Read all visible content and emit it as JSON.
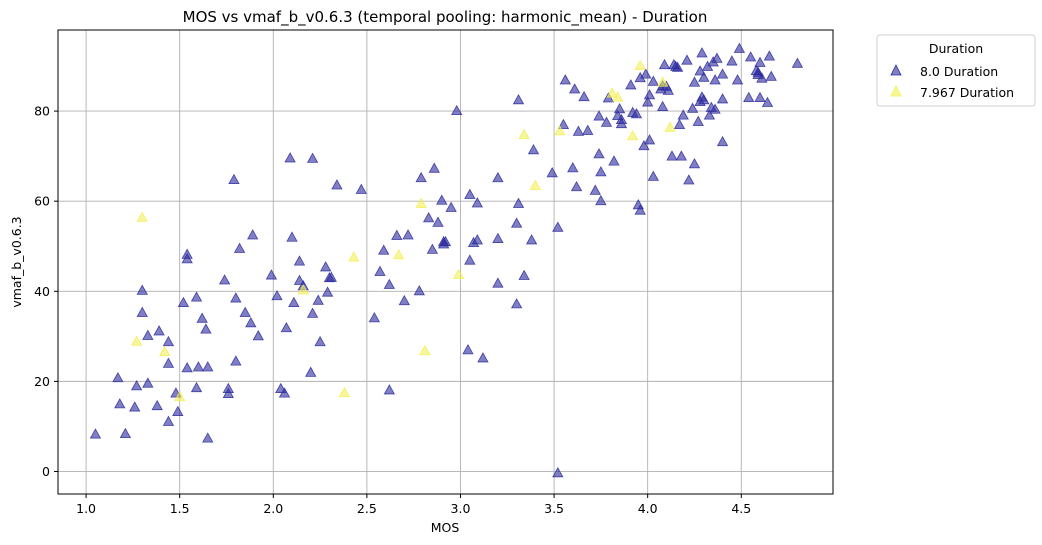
{
  "chart_data": {
    "type": "scatter",
    "title": "MOS vs vmaf_b_v0.6.3 (temporal pooling: harmonic_mean) - Duration",
    "xlabel": "MOS",
    "ylabel": "vmaf_b_v0.6.3",
    "xlim": [
      0.85,
      4.99
    ],
    "ylim": [
      -5,
      98
    ],
    "xticks": [
      "1.0",
      "1.5",
      "2.0",
      "2.5",
      "3.0",
      "3.5",
      "4.0",
      "4.5"
    ],
    "xtick_values": [
      1.0,
      1.5,
      2.0,
      2.5,
      3.0,
      3.5,
      4.0,
      4.5
    ],
    "yticks": [
      "0",
      "20",
      "40",
      "60",
      "80"
    ],
    "ytick_values": [
      0,
      20,
      40,
      60,
      80
    ],
    "grid": true,
    "marker": "triangle",
    "legend": {
      "title": "Duration",
      "position": "outside-top-right"
    },
    "series": [
      {
        "name": "8.0 Duration",
        "color": "#2b2a9c",
        "points": [
          [
            1.05,
            8.3
          ],
          [
            1.17,
            20.8
          ],
          [
            1.18,
            15.0
          ],
          [
            1.21,
            8.4
          ],
          [
            1.26,
            14.3
          ],
          [
            1.27,
            19.0
          ],
          [
            1.3,
            40.2
          ],
          [
            1.3,
            35.3
          ],
          [
            1.33,
            30.2
          ],
          [
            1.33,
            19.6
          ],
          [
            1.38,
            14.6
          ],
          [
            1.39,
            31.2
          ],
          [
            1.44,
            28.8
          ],
          [
            1.44,
            24.0
          ],
          [
            1.44,
            11.1
          ],
          [
            1.48,
            17.4
          ],
          [
            1.49,
            13.3
          ],
          [
            1.52,
            37.5
          ],
          [
            1.54,
            48.2
          ],
          [
            1.54,
            47.2
          ],
          [
            1.54,
            23.0
          ],
          [
            1.59,
            38.7
          ],
          [
            1.59,
            18.6
          ],
          [
            1.6,
            23.2
          ],
          [
            1.62,
            34.0
          ],
          [
            1.64,
            31.6
          ],
          [
            1.65,
            23.2
          ],
          [
            1.65,
            7.4
          ],
          [
            1.74,
            42.5
          ],
          [
            1.76,
            18.4
          ],
          [
            1.76,
            17.3
          ],
          [
            1.79,
            64.8
          ],
          [
            1.8,
            24.5
          ],
          [
            1.8,
            38.5
          ],
          [
            1.82,
            49.5
          ],
          [
            1.85,
            35.3
          ],
          [
            1.88,
            33.0
          ],
          [
            1.89,
            52.5
          ],
          [
            1.92,
            30.1
          ],
          [
            1.99,
            43.6
          ],
          [
            2.02,
            39.0
          ],
          [
            2.04,
            18.4
          ],
          [
            2.06,
            17.4
          ],
          [
            2.07,
            31.9
          ],
          [
            2.09,
            69.6
          ],
          [
            2.1,
            52.0
          ],
          [
            2.11,
            37.5
          ],
          [
            2.14,
            46.7
          ],
          [
            2.14,
            42.4
          ],
          [
            2.16,
            41.2
          ],
          [
            2.2,
            22.0
          ],
          [
            2.21,
            69.5
          ],
          [
            2.21,
            35.1
          ],
          [
            2.24,
            38.0
          ],
          [
            2.25,
            28.8
          ],
          [
            2.28,
            45.4
          ],
          [
            2.29,
            39.8
          ],
          [
            2.3,
            43.0
          ],
          [
            2.31,
            43.1
          ],
          [
            2.34,
            63.6
          ],
          [
            2.47,
            62.6
          ],
          [
            2.54,
            34.1
          ],
          [
            2.57,
            44.4
          ],
          [
            2.59,
            49.1
          ],
          [
            2.62,
            41.5
          ],
          [
            2.62,
            18.1
          ],
          [
            2.66,
            52.4
          ],
          [
            2.7,
            37.9
          ],
          [
            2.72,
            52.5
          ],
          [
            2.78,
            40.1
          ],
          [
            2.79,
            65.2
          ],
          [
            2.83,
            56.3
          ],
          [
            2.85,
            49.3
          ],
          [
            2.86,
            67.3
          ],
          [
            2.88,
            55.3
          ],
          [
            2.9,
            60.2
          ],
          [
            2.91,
            51.0
          ],
          [
            2.91,
            50.5
          ],
          [
            2.92,
            51.0
          ],
          [
            2.95,
            58.6
          ],
          [
            2.98,
            80.1
          ],
          [
            3.05,
            61.5
          ],
          [
            3.04,
            27.0
          ],
          [
            3.05,
            46.9
          ],
          [
            3.07,
            50.8
          ],
          [
            3.09,
            59.6
          ],
          [
            3.09,
            51.4
          ],
          [
            3.12,
            25.2
          ],
          [
            3.2,
            65.2
          ],
          [
            3.2,
            51.7
          ],
          [
            3.2,
            41.8
          ],
          [
            3.3,
            55.1
          ],
          [
            3.3,
            37.2
          ],
          [
            3.31,
            82.5
          ],
          [
            3.31,
            59.5
          ],
          [
            3.34,
            43.5
          ],
          [
            3.38,
            51.4
          ],
          [
            3.39,
            71.4
          ],
          [
            3.49,
            66.3
          ],
          [
            3.52,
            54.2
          ],
          [
            3.52,
            -0.3
          ],
          [
            3.55,
            77.0
          ],
          [
            3.56,
            86.9
          ],
          [
            3.6,
            67.4
          ],
          [
            3.61,
            84.9
          ],
          [
            3.62,
            63.2
          ],
          [
            3.63,
            75.5
          ],
          [
            3.66,
            83.2
          ],
          [
            3.68,
            75.7
          ],
          [
            3.72,
            62.4
          ],
          [
            3.74,
            78.9
          ],
          [
            3.74,
            70.5
          ],
          [
            3.75,
            60.1
          ],
          [
            3.75,
            66.5
          ],
          [
            3.78,
            77.5
          ],
          [
            3.79,
            82.9
          ],
          [
            3.82,
            68.9
          ],
          [
            3.84,
            79.0
          ],
          [
            3.85,
            80.5
          ],
          [
            3.86,
            78.1
          ],
          [
            3.86,
            77.2
          ],
          [
            3.91,
            85.8
          ],
          [
            3.92,
            79.7
          ],
          [
            3.94,
            79.4
          ],
          [
            3.95,
            59.2
          ],
          [
            3.96,
            58.0
          ],
          [
            3.96,
            87.4
          ],
          [
            3.98,
            72.3
          ],
          [
            3.99,
            88.2
          ],
          [
            4.0,
            82.0
          ],
          [
            4.01,
            83.6
          ],
          [
            4.01,
            73.6
          ],
          [
            4.03,
            65.5
          ],
          [
            4.03,
            86.6
          ],
          [
            4.07,
            84.9
          ],
          [
            4.08,
            81.0
          ],
          [
            4.08,
            85.6
          ],
          [
            4.09,
            90.3
          ],
          [
            4.1,
            85.5
          ],
          [
            4.11,
            84.6
          ],
          [
            4.13,
            70.0
          ],
          [
            4.14,
            90.3
          ],
          [
            4.15,
            89.9
          ],
          [
            4.16,
            89.7
          ],
          [
            4.17,
            77.0
          ],
          [
            4.18,
            70.0
          ],
          [
            4.19,
            79.1
          ],
          [
            4.21,
            91.3
          ],
          [
            4.22,
            64.7
          ],
          [
            4.24,
            80.6
          ],
          [
            4.25,
            86.4
          ],
          [
            4.25,
            68.3
          ],
          [
            4.27,
            77.7
          ],
          [
            4.28,
            88.9
          ],
          [
            4.28,
            82.1
          ],
          [
            4.29,
            83.1
          ],
          [
            4.29,
            92.9
          ],
          [
            4.3,
            82.5
          ],
          [
            4.3,
            87.5
          ],
          [
            4.32,
            89.9
          ],
          [
            4.33,
            79.1
          ],
          [
            4.34,
            80.8
          ],
          [
            4.35,
            90.9
          ],
          [
            4.36,
            80.4
          ],
          [
            4.36,
            86.9
          ],
          [
            4.37,
            91.7
          ],
          [
            4.4,
            88.2
          ],
          [
            4.4,
            73.2
          ],
          [
            4.4,
            82.7
          ],
          [
            4.45,
            91.1
          ],
          [
            4.48,
            86.9
          ],
          [
            4.49,
            93.9
          ],
          [
            4.54,
            83.0
          ],
          [
            4.55,
            92.0
          ],
          [
            4.58,
            89.0
          ],
          [
            4.59,
            88.1
          ],
          [
            4.59,
            88.6
          ],
          [
            4.6,
            90.8
          ],
          [
            4.6,
            83.0
          ],
          [
            4.61,
            87.3
          ],
          [
            4.64,
            81.9
          ],
          [
            4.65,
            92.2
          ],
          [
            4.66,
            87.7
          ],
          [
            4.8,
            90.6
          ]
        ]
      },
      {
        "name": "7.967 Duration",
        "color": "#f2ef4a",
        "points": [
          [
            1.27,
            28.9
          ],
          [
            1.3,
            56.4
          ],
          [
            1.42,
            26.6
          ],
          [
            1.5,
            16.6
          ],
          [
            2.16,
            40.3
          ],
          [
            2.38,
            17.5
          ],
          [
            2.43,
            47.6
          ],
          [
            2.67,
            48.1
          ],
          [
            2.79,
            59.5
          ],
          [
            2.81,
            26.8
          ],
          [
            2.99,
            43.7
          ],
          [
            3.34,
            74.8
          ],
          [
            3.4,
            63.5
          ],
          [
            3.53,
            75.6
          ],
          [
            3.81,
            84.0
          ],
          [
            3.84,
            83.1
          ],
          [
            3.92,
            74.5
          ],
          [
            3.96,
            90.1
          ],
          [
            4.08,
            86.4
          ],
          [
            4.12,
            76.4
          ]
        ]
      }
    ]
  }
}
